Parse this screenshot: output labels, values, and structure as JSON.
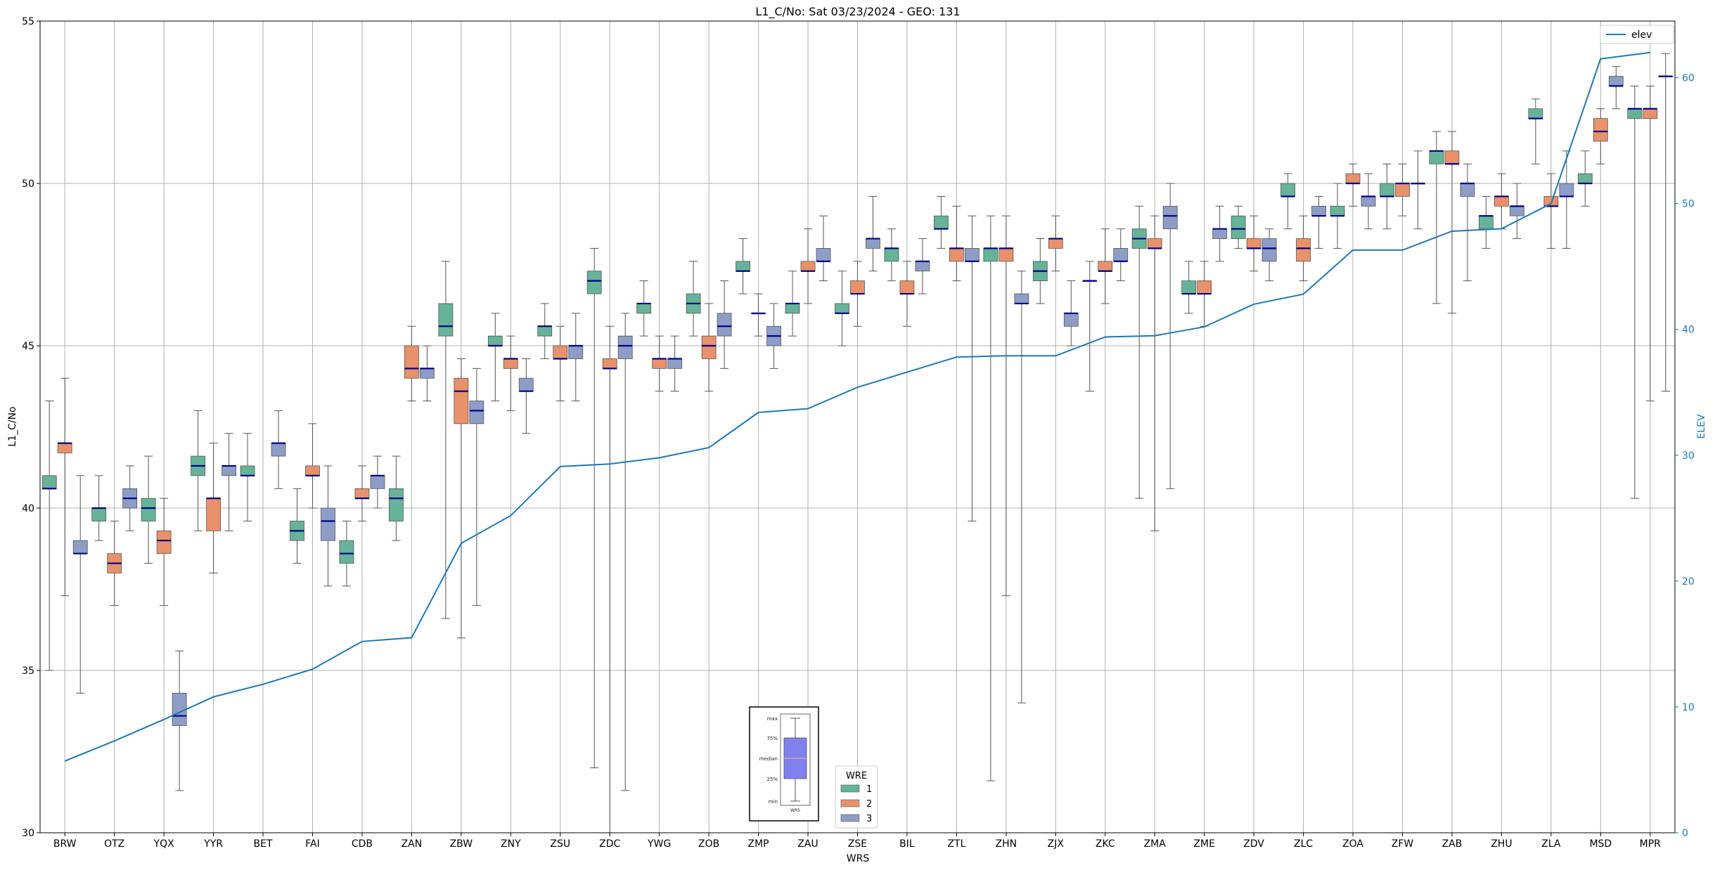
{
  "chart_data": {
    "type": "box",
    "title": "L1_C/No: Sat 03/23/2024 - GEO: 131",
    "xlabel": "WRS",
    "ylabel": "L1_C/No",
    "y2label": "ELEV",
    "ylim": [
      30,
      55
    ],
    "y2lim": [
      0,
      64.5
    ],
    "yticks": [
      "30",
      "35",
      "40",
      "45",
      "50",
      "55"
    ],
    "y2ticks": [
      "0",
      "10",
      "20",
      "30",
      "40",
      "50",
      "60"
    ],
    "grid": true,
    "colors": {
      "1": "#66b398",
      "2": "#e8916a",
      "3": "#8d9dc5",
      "median": "#00008b",
      "elev": "#1f77b4"
    },
    "categories": [
      "BRW",
      "OTZ",
      "YQX",
      "YYR",
      "BET",
      "FAI",
      "CDB",
      "ZAN",
      "ZBW",
      "ZNY",
      "ZSU",
      "ZDC",
      "YWG",
      "ZOB",
      "ZMP",
      "ZAU",
      "ZSE",
      "BIL",
      "ZTL",
      "ZHN",
      "ZJX",
      "ZKC",
      "ZMA",
      "ZME",
      "ZDV",
      "ZLC",
      "ZOA",
      "ZFW",
      "ZAB",
      "ZHU",
      "ZLA",
      "MSD",
      "MPR"
    ],
    "legend_title": "WRE",
    "legend_labels": [
      "1",
      "2",
      "3"
    ],
    "elev_legend": "elev",
    "elev": [
      5.7,
      7.3,
      9.0,
      10.8,
      11.8,
      13.0,
      15.2,
      15.5,
      23.0,
      25.2,
      29.1,
      29.3,
      29.8,
      30.6,
      33.4,
      33.7,
      35.4,
      36.6,
      37.8,
      37.9,
      37.9,
      39.4,
      39.5,
      40.2,
      42.0,
      42.8,
      46.3,
      46.3,
      47.8,
      48.0,
      50.0,
      61.5,
      62.0
    ],
    "boxes": [
      {
        "wrs": "BRW",
        "wre": 1,
        "min": 35.0,
        "q1": 40.6,
        "med": 40.6,
        "q3": 41.0,
        "max": 43.3
      },
      {
        "wrs": "BRW",
        "wre": 2,
        "min": 37.3,
        "q1": 41.7,
        "med": 42.0,
        "q3": 42.0,
        "max": 44.0
      },
      {
        "wrs": "BRW",
        "wre": 3,
        "min": 34.3,
        "q1": 38.6,
        "med": 38.6,
        "q3": 39.0,
        "max": 41.0
      },
      {
        "wrs": "OTZ",
        "wre": 1,
        "min": 39.0,
        "q1": 39.6,
        "med": 40.0,
        "q3": 40.0,
        "max": 41.0
      },
      {
        "wrs": "OTZ",
        "wre": 2,
        "min": 37.0,
        "q1": 38.0,
        "med": 38.3,
        "q3": 38.6,
        "max": 39.6
      },
      {
        "wrs": "OTZ",
        "wre": 3,
        "min": 39.3,
        "q1": 40.0,
        "med": 40.3,
        "q3": 40.6,
        "max": 41.3
      },
      {
        "wrs": "YQX",
        "wre": 1,
        "min": 38.3,
        "q1": 39.6,
        "med": 40.0,
        "q3": 40.3,
        "max": 41.6
      },
      {
        "wrs": "YQX",
        "wre": 2,
        "min": 37.0,
        "q1": 38.6,
        "med": 39.0,
        "q3": 39.3,
        "max": 40.3
      },
      {
        "wrs": "YQX",
        "wre": 3,
        "min": 31.3,
        "q1": 33.3,
        "med": 33.6,
        "q3": 34.3,
        "max": 35.6
      },
      {
        "wrs": "YYR",
        "wre": 1,
        "min": 39.3,
        "q1": 41.0,
        "med": 41.3,
        "q3": 41.6,
        "max": 43.0
      },
      {
        "wrs": "YYR",
        "wre": 2,
        "min": 38.0,
        "q1": 39.3,
        "med": 40.3,
        "q3": 40.3,
        "max": 42.0
      },
      {
        "wrs": "YYR",
        "wre": 3,
        "min": 39.3,
        "q1": 41.0,
        "med": 41.3,
        "q3": 41.3,
        "max": 42.3
      },
      {
        "wrs": "BET",
        "wre": 1,
        "min": 39.6,
        "q1": 41.0,
        "med": 41.0,
        "q3": 41.3,
        "max": 42.3
      },
      {
        "wrs": "BET",
        "wre": 3,
        "min": 40.6,
        "q1": 41.6,
        "med": 42.0,
        "q3": 42.0,
        "max": 43.0
      },
      {
        "wrs": "FAI",
        "wre": 1,
        "min": 38.3,
        "q1": 39.0,
        "med": 39.3,
        "q3": 39.6,
        "max": 40.6
      },
      {
        "wrs": "FAI",
        "wre": 2,
        "min": 40.0,
        "q1": 41.0,
        "med": 41.0,
        "q3": 41.3,
        "max": 42.6
      },
      {
        "wrs": "FAI",
        "wre": 3,
        "min": 37.6,
        "q1": 39.0,
        "med": 39.6,
        "q3": 40.0,
        "max": 41.3
      },
      {
        "wrs": "CDB",
        "wre": 1,
        "min": 37.6,
        "q1": 38.3,
        "med": 38.6,
        "q3": 39.0,
        "max": 39.6
      },
      {
        "wrs": "CDB",
        "wre": 2,
        "min": 39.6,
        "q1": 40.3,
        "med": 40.3,
        "q3": 40.6,
        "max": 41.3
      },
      {
        "wrs": "CDB",
        "wre": 3,
        "min": 40.0,
        "q1": 40.6,
        "med": 41.0,
        "q3": 41.0,
        "max": 41.6
      },
      {
        "wrs": "ZAN",
        "wre": 1,
        "min": 39.0,
        "q1": 39.6,
        "med": 40.3,
        "q3": 40.6,
        "max": 41.6
      },
      {
        "wrs": "ZAN",
        "wre": 2,
        "min": 43.3,
        "q1": 44.0,
        "med": 44.3,
        "q3": 45.0,
        "max": 45.6
      },
      {
        "wrs": "ZAN",
        "wre": 3,
        "min": 43.3,
        "q1": 44.0,
        "med": 44.3,
        "q3": 44.3,
        "max": 45.0
      },
      {
        "wrs": "ZBW",
        "wre": 1,
        "min": 36.6,
        "q1": 45.3,
        "med": 45.6,
        "q3": 46.3,
        "max": 47.6
      },
      {
        "wrs": "ZBW",
        "wre": 2,
        "min": 36.0,
        "q1": 42.6,
        "med": 43.6,
        "q3": 44.0,
        "max": 44.6
      },
      {
        "wrs": "ZBW",
        "wre": 3,
        "min": 37.0,
        "q1": 42.6,
        "med": 43.0,
        "q3": 43.3,
        "max": 44.3
      },
      {
        "wrs": "ZNY",
        "wre": 1,
        "min": 43.3,
        "q1": 45.0,
        "med": 45.0,
        "q3": 45.3,
        "max": 46.0
      },
      {
        "wrs": "ZNY",
        "wre": 2,
        "min": 43.0,
        "q1": 44.3,
        "med": 44.6,
        "q3": 44.6,
        "max": 45.3
      },
      {
        "wrs": "ZNY",
        "wre": 3,
        "min": 42.3,
        "q1": 43.6,
        "med": 43.6,
        "q3": 44.0,
        "max": 44.6
      },
      {
        "wrs": "ZSU",
        "wre": 1,
        "min": 44.6,
        "q1": 45.3,
        "med": 45.6,
        "q3": 45.6,
        "max": 46.3
      },
      {
        "wrs": "ZSU",
        "wre": 2,
        "min": 43.3,
        "q1": 44.6,
        "med": 44.6,
        "q3": 45.0,
        "max": 45.6
      },
      {
        "wrs": "ZSU",
        "wre": 3,
        "min": 43.3,
        "q1": 44.6,
        "med": 45.0,
        "q3": 45.0,
        "max": 46.0
      },
      {
        "wrs": "ZDC",
        "wre": 1,
        "min": 32.0,
        "q1": 46.6,
        "med": 47.0,
        "q3": 47.3,
        "max": 48.0
      },
      {
        "wrs": "ZDC",
        "wre": 2,
        "min": 30.0,
        "q1": 44.3,
        "med": 44.3,
        "q3": 44.6,
        "max": 45.6
      },
      {
        "wrs": "ZDC",
        "wre": 3,
        "min": 31.3,
        "q1": 44.6,
        "med": 45.0,
        "q3": 45.3,
        "max": 46.0
      },
      {
        "wrs": "YWG",
        "wre": 1,
        "min": 45.3,
        "q1": 46.0,
        "med": 46.3,
        "q3": 46.3,
        "max": 47.0
      },
      {
        "wrs": "YWG",
        "wre": 2,
        "min": 43.6,
        "q1": 44.3,
        "med": 44.6,
        "q3": 44.6,
        "max": 45.3
      },
      {
        "wrs": "YWG",
        "wre": 3,
        "min": 43.6,
        "q1": 44.3,
        "med": 44.6,
        "q3": 44.6,
        "max": 45.3
      },
      {
        "wrs": "ZOB",
        "wre": 1,
        "min": 45.3,
        "q1": 46.0,
        "med": 46.3,
        "q3": 46.6,
        "max": 47.6
      },
      {
        "wrs": "ZOB",
        "wre": 2,
        "min": 43.6,
        "q1": 44.6,
        "med": 45.0,
        "q3": 45.3,
        "max": 46.3
      },
      {
        "wrs": "ZOB",
        "wre": 3,
        "min": 44.3,
        "q1": 45.3,
        "med": 45.6,
        "q3": 46.0,
        "max": 47.0
      },
      {
        "wrs": "ZMP",
        "wre": 1,
        "min": 46.6,
        "q1": 47.3,
        "med": 47.3,
        "q3": 47.6,
        "max": 48.3
      },
      {
        "wrs": "ZMP",
        "wre": 2,
        "min": 45.3,
        "q1": 46.0,
        "med": 46.0,
        "q3": 46.0,
        "max": 46.6
      },
      {
        "wrs": "ZMP",
        "wre": 3,
        "min": 44.3,
        "q1": 45.0,
        "med": 45.3,
        "q3": 45.6,
        "max": 46.3
      },
      {
        "wrs": "ZAU",
        "wre": 1,
        "min": 45.3,
        "q1": 46.0,
        "med": 46.3,
        "q3": 46.3,
        "max": 47.3
      },
      {
        "wrs": "ZAU",
        "wre": 2,
        "min": 46.3,
        "q1": 47.3,
        "med": 47.3,
        "q3": 47.6,
        "max": 48.6
      },
      {
        "wrs": "ZAU",
        "wre": 3,
        "min": 47.0,
        "q1": 47.6,
        "med": 47.6,
        "q3": 48.0,
        "max": 49.0
      },
      {
        "wrs": "ZSE",
        "wre": 1,
        "min": 45.0,
        "q1": 46.0,
        "med": 46.0,
        "q3": 46.3,
        "max": 47.3
      },
      {
        "wrs": "ZSE",
        "wre": 2,
        "min": 45.6,
        "q1": 46.6,
        "med": 46.6,
        "q3": 47.0,
        "max": 47.6
      },
      {
        "wrs": "ZSE",
        "wre": 3,
        "min": 47.3,
        "q1": 48.0,
        "med": 48.3,
        "q3": 48.3,
        "max": 49.6
      },
      {
        "wrs": "BIL",
        "wre": 1,
        "min": 47.0,
        "q1": 47.6,
        "med": 48.0,
        "q3": 48.0,
        "max": 48.6
      },
      {
        "wrs": "BIL",
        "wre": 2,
        "min": 45.6,
        "q1": 46.6,
        "med": 46.6,
        "q3": 47.0,
        "max": 47.6
      },
      {
        "wrs": "BIL",
        "wre": 3,
        "min": 46.6,
        "q1": 47.3,
        "med": 47.6,
        "q3": 47.6,
        "max": 48.3
      },
      {
        "wrs": "ZTL",
        "wre": 1,
        "min": 48.0,
        "q1": 48.6,
        "med": 48.6,
        "q3": 49.0,
        "max": 49.6
      },
      {
        "wrs": "ZTL",
        "wre": 2,
        "min": 47.0,
        "q1": 47.6,
        "med": 48.0,
        "q3": 48.0,
        "max": 49.3
      },
      {
        "wrs": "ZTL",
        "wre": 3,
        "min": 39.6,
        "q1": 47.6,
        "med": 47.6,
        "q3": 48.0,
        "max": 49.0
      },
      {
        "wrs": "ZHN",
        "wre": 1,
        "min": 31.6,
        "q1": 47.6,
        "med": 48.0,
        "q3": 48.0,
        "max": 49.0
      },
      {
        "wrs": "ZHN",
        "wre": 2,
        "min": 37.3,
        "q1": 47.6,
        "med": 48.0,
        "q3": 48.0,
        "max": 49.0
      },
      {
        "wrs": "ZHN",
        "wre": 3,
        "min": 34.0,
        "q1": 46.3,
        "med": 46.3,
        "q3": 46.6,
        "max": 47.3
      },
      {
        "wrs": "ZJX",
        "wre": 1,
        "min": 46.3,
        "q1": 47.0,
        "med": 47.3,
        "q3": 47.6,
        "max": 48.3
      },
      {
        "wrs": "ZJX",
        "wre": 2,
        "min": 47.3,
        "q1": 48.0,
        "med": 48.3,
        "q3": 48.3,
        "max": 49.0
      },
      {
        "wrs": "ZJX",
        "wre": 3,
        "min": 45.0,
        "q1": 45.6,
        "med": 46.0,
        "q3": 46.0,
        "max": 47.0
      },
      {
        "wrs": "ZKC",
        "wre": 1,
        "min": 43.6,
        "q1": 47.0,
        "med": 47.0,
        "q3": 47.0,
        "max": 47.6
      },
      {
        "wrs": "ZKC",
        "wre": 2,
        "min": 46.3,
        "q1": 47.3,
        "med": 47.3,
        "q3": 47.6,
        "max": 48.6
      },
      {
        "wrs": "ZKC",
        "wre": 3,
        "min": 47.0,
        "q1": 47.6,
        "med": 47.6,
        "q3": 48.0,
        "max": 48.6
      },
      {
        "wrs": "ZMA",
        "wre": 1,
        "min": 40.3,
        "q1": 48.0,
        "med": 48.3,
        "q3": 48.6,
        "max": 49.3
      },
      {
        "wrs": "ZMA",
        "wre": 2,
        "min": 39.3,
        "q1": 48.0,
        "med": 48.0,
        "q3": 48.3,
        "max": 49.0
      },
      {
        "wrs": "ZMA",
        "wre": 3,
        "min": 40.6,
        "q1": 48.6,
        "med": 49.0,
        "q3": 49.3,
        "max": 50.0
      },
      {
        "wrs": "ZME",
        "wre": 1,
        "min": 46.0,
        "q1": 46.6,
        "med": 46.6,
        "q3": 47.0,
        "max": 47.6
      },
      {
        "wrs": "ZME",
        "wre": 2,
        "min": 45.6,
        "q1": 46.6,
        "med": 46.6,
        "q3": 47.0,
        "max": 47.6
      },
      {
        "wrs": "ZME",
        "wre": 3,
        "min": 47.6,
        "q1": 48.3,
        "med": 48.6,
        "q3": 48.6,
        "max": 49.3
      },
      {
        "wrs": "ZDV",
        "wre": 1,
        "min": 48.0,
        "q1": 48.3,
        "med": 48.6,
        "q3": 49.0,
        "max": 49.3
      },
      {
        "wrs": "ZDV",
        "wre": 2,
        "min": 47.3,
        "q1": 48.0,
        "med": 48.0,
        "q3": 48.3,
        "max": 49.0
      },
      {
        "wrs": "ZDV",
        "wre": 3,
        "min": 47.0,
        "q1": 47.6,
        "med": 48.0,
        "q3": 48.3,
        "max": 48.6
      },
      {
        "wrs": "ZLC",
        "wre": 1,
        "min": 48.6,
        "q1": 49.6,
        "med": 49.6,
        "q3": 50.0,
        "max": 50.3
      },
      {
        "wrs": "ZLC",
        "wre": 2,
        "min": 47.0,
        "q1": 47.6,
        "med": 48.0,
        "q3": 48.3,
        "max": 49.0
      },
      {
        "wrs": "ZLC",
        "wre": 3,
        "min": 48.0,
        "q1": 49.0,
        "med": 49.0,
        "q3": 49.3,
        "max": 49.6
      },
      {
        "wrs": "ZOA",
        "wre": 1,
        "min": 48.0,
        "q1": 49.0,
        "med": 49.0,
        "q3": 49.3,
        "max": 50.0
      },
      {
        "wrs": "ZOA",
        "wre": 2,
        "min": 49.3,
        "q1": 50.0,
        "med": 50.0,
        "q3": 50.3,
        "max": 50.6
      },
      {
        "wrs": "ZOA",
        "wre": 3,
        "min": 48.6,
        "q1": 49.3,
        "med": 49.6,
        "q3": 49.6,
        "max": 50.3
      },
      {
        "wrs": "ZFW",
        "wre": 1,
        "min": 48.6,
        "q1": 49.6,
        "med": 49.6,
        "q3": 50.0,
        "max": 50.6
      },
      {
        "wrs": "ZFW",
        "wre": 2,
        "min": 49.0,
        "q1": 49.6,
        "med": 50.0,
        "q3": 50.0,
        "max": 50.6
      },
      {
        "wrs": "ZFW",
        "wre": 3,
        "min": 48.6,
        "q1": 50.0,
        "med": 50.0,
        "q3": 50.0,
        "max": 51.0
      },
      {
        "wrs": "ZAB",
        "wre": 1,
        "min": 46.3,
        "q1": 50.6,
        "med": 51.0,
        "q3": 51.0,
        "max": 51.6
      },
      {
        "wrs": "ZAB",
        "wre": 2,
        "min": 46.0,
        "q1": 50.6,
        "med": 50.6,
        "q3": 51.0,
        "max": 51.6
      },
      {
        "wrs": "ZAB",
        "wre": 3,
        "min": 47.0,
        "q1": 49.6,
        "med": 50.0,
        "q3": 50.0,
        "max": 50.6
      },
      {
        "wrs": "ZHU",
        "wre": 1,
        "min": 48.0,
        "q1": 48.6,
        "med": 49.0,
        "q3": 49.0,
        "max": 49.6
      },
      {
        "wrs": "ZHU",
        "wre": 2,
        "min": 48.6,
        "q1": 49.3,
        "med": 49.6,
        "q3": 49.6,
        "max": 50.3
      },
      {
        "wrs": "ZHU",
        "wre": 3,
        "min": 48.3,
        "q1": 49.0,
        "med": 49.3,
        "q3": 49.3,
        "max": 50.0
      },
      {
        "wrs": "ZLA",
        "wre": 1,
        "min": 50.6,
        "q1": 52.0,
        "med": 52.0,
        "q3": 52.3,
        "max": 52.6
      },
      {
        "wrs": "ZLA",
        "wre": 2,
        "min": 48.0,
        "q1": 49.3,
        "med": 49.3,
        "q3": 49.6,
        "max": 50.3
      },
      {
        "wrs": "ZLA",
        "wre": 3,
        "min": 48.0,
        "q1": 49.6,
        "med": 49.6,
        "q3": 50.0,
        "max": 51.0
      },
      {
        "wrs": "MSD",
        "wre": 1,
        "min": 49.3,
        "q1": 50.0,
        "med": 50.0,
        "q3": 50.3,
        "max": 51.0
      },
      {
        "wrs": "MSD",
        "wre": 2,
        "min": 50.6,
        "q1": 51.3,
        "med": 51.6,
        "q3": 52.0,
        "max": 52.3
      },
      {
        "wrs": "MSD",
        "wre": 3,
        "min": 52.3,
        "q1": 53.0,
        "med": 53.0,
        "q3": 53.3,
        "max": 53.6
      },
      {
        "wrs": "MPR",
        "wre": 1,
        "min": 40.3,
        "q1": 52.0,
        "med": 52.3,
        "q3": 52.3,
        "max": 53.0
      },
      {
        "wrs": "MPR",
        "wre": 2,
        "min": 43.3,
        "q1": 52.0,
        "med": 52.3,
        "q3": 52.3,
        "max": 53.0
      },
      {
        "wrs": "MPR",
        "wre": 3,
        "min": 43.6,
        "q1": 53.3,
        "med": 53.3,
        "q3": 53.3,
        "max": 54.0
      }
    ],
    "inset": {
      "labels": [
        "max",
        "75%",
        "median",
        "25%",
        "min"
      ],
      "xlabel": "WRS",
      "box_color": "#8080ee",
      "median_color": "#d8a0a0"
    }
  }
}
